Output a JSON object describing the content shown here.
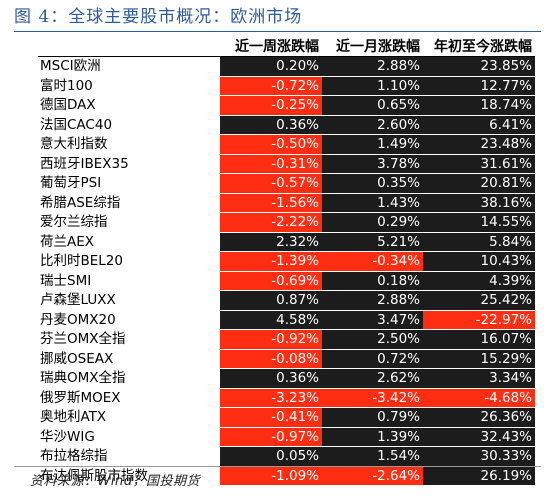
{
  "title": "图 4：全球主要股市概况：欧洲市场",
  "headers": [
    "",
    "近一周涨跌幅",
    "近一月涨跌幅",
    "年初至今涨跌幅"
  ],
  "rows": [
    {
      "name": "MSCI欧洲",
      "week": "0.20%",
      "month": "2.88%",
      "ytd": "23.85%"
    },
    {
      "name": "富时100",
      "week": "-0.72%",
      "month": "1.10%",
      "ytd": "12.77%"
    },
    {
      "name": "德国DAX",
      "week": "-0.25%",
      "month": "0.65%",
      "ytd": "18.74%"
    },
    {
      "name": "法国CAC40",
      "week": "0.36%",
      "month": "2.60%",
      "ytd": "6.41%"
    },
    {
      "name": "意大利指数",
      "week": "-0.50%",
      "month": "1.49%",
      "ytd": "23.48%"
    },
    {
      "name": "西班牙IBEX35",
      "week": "-0.31%",
      "month": "3.78%",
      "ytd": "31.61%"
    },
    {
      "name": "葡萄牙PSI",
      "week": "-0.57%",
      "month": "0.35%",
      "ytd": "20.81%"
    },
    {
      "name": "希腊ASE综指",
      "week": "-1.56%",
      "month": "1.43%",
      "ytd": "38.16%"
    },
    {
      "name": "爱尔兰综指",
      "week": "-2.22%",
      "month": "0.29%",
      "ytd": "14.55%"
    },
    {
      "name": "荷兰AEX",
      "week": "2.32%",
      "month": "5.21%",
      "ytd": "5.84%"
    },
    {
      "name": "比利时BEL20",
      "week": "-1.39%",
      "month": "-0.34%",
      "ytd": "10.43%"
    },
    {
      "name": "瑞士SMI",
      "week": "-0.69%",
      "month": "0.18%",
      "ytd": "4.39%"
    },
    {
      "name": "卢森堡LUXX",
      "week": "0.87%",
      "month": "2.88%",
      "ytd": "25.42%"
    },
    {
      "name": "丹麦OMX20",
      "week": "4.58%",
      "month": "3.47%",
      "ytd": "-22.97%"
    },
    {
      "name": "芬兰OMX全指",
      "week": "-0.92%",
      "month": "2.50%",
      "ytd": "16.07%"
    },
    {
      "name": "挪威OSEAX",
      "week": "-0.08%",
      "month": "0.72%",
      "ytd": "15.29%"
    },
    {
      "name": "瑞典OMX全指",
      "week": "0.36%",
      "month": "2.62%",
      "ytd": "3.34%"
    },
    {
      "name": "俄罗斯MOEX",
      "week": "-3.23%",
      "month": "-3.42%",
      "ytd": "-4.68%"
    },
    {
      "name": "奥地利ATX",
      "week": "-0.41%",
      "month": "0.79%",
      "ytd": "26.36%"
    },
    {
      "name": "华沙WIG",
      "week": "-0.97%",
      "month": "1.39%",
      "ytd": "32.43%"
    },
    {
      "name": "布拉格综指",
      "week": "0.05%",
      "month": "1.54%",
      "ytd": "30.33%"
    },
    {
      "name": "布达佩斯股市指数",
      "week": "-1.09%",
      "month": "-2.64%",
      "ytd": "26.19%"
    }
  ],
  "source": "资料来源：Wind，国投期货",
  "colors": {
    "positive_bg": "#1c1c1c",
    "negative_bg": "#ff2d12",
    "title": "#2d5c9a"
  }
}
